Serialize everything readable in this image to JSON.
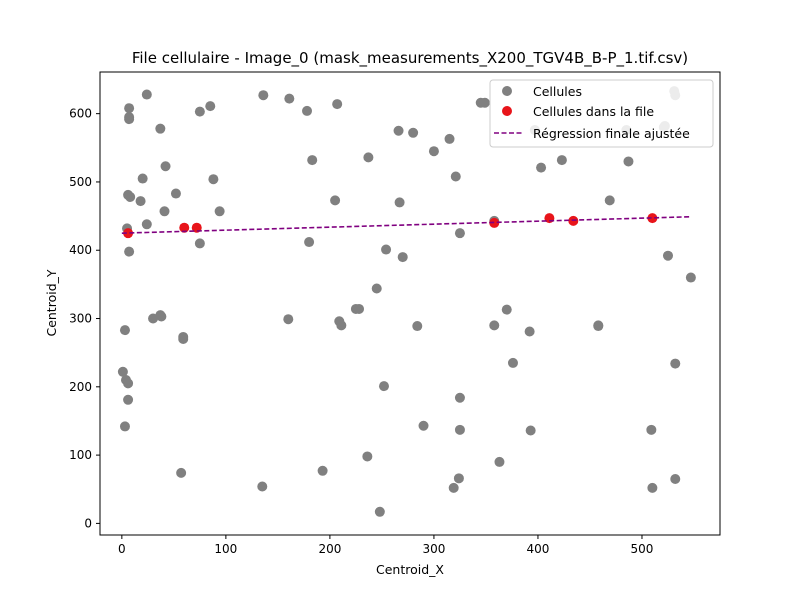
{
  "chart_data": {
    "type": "scatter",
    "title": "File cellulaire - Image_0 (mask_measurements_X200_TGV4B_B-P_1.tif.csv)",
    "xlabel": "Centroid_X",
    "ylabel": "Centroid_Y",
    "xlim": [
      -21,
      575
    ],
    "ylim": [
      661,
      -17
    ],
    "y_inverted": true,
    "x_ticks": [
      0,
      100,
      200,
      300,
      400,
      500
    ],
    "y_ticks": [
      0,
      100,
      200,
      300,
      400,
      500,
      600
    ],
    "grid": false,
    "legend_position": "top-right",
    "series": [
      {
        "name": "Cellules",
        "kind": "scatter",
        "color": "#808080",
        "points": [
          [
            248,
            17
          ],
          [
            319,
            52
          ],
          [
            324,
            66
          ],
          [
            510,
            52
          ],
          [
            532,
            65
          ],
          [
            57,
            74
          ],
          [
            135,
            54
          ],
          [
            193,
            77
          ],
          [
            236,
            98
          ],
          [
            363,
            90
          ],
          [
            3,
            142
          ],
          [
            290,
            143
          ],
          [
            325,
            137
          ],
          [
            393,
            136
          ],
          [
            509,
            137
          ],
          [
            6,
            181
          ],
          [
            325,
            184
          ],
          [
            6,
            205
          ],
          [
            4,
            210
          ],
          [
            252,
            201
          ],
          [
            1,
            222
          ],
          [
            376,
            235
          ],
          [
            532,
            234
          ],
          [
            59,
            270
          ],
          [
            59,
            273
          ],
          [
            3,
            283
          ],
          [
            30,
            300
          ],
          [
            37,
            305
          ],
          [
            38,
            303
          ],
          [
            160,
            299
          ],
          [
            209,
            296
          ],
          [
            211,
            290
          ],
          [
            225,
            314
          ],
          [
            228,
            314
          ],
          [
            284,
            289
          ],
          [
            358,
            290
          ],
          [
            370,
            313
          ],
          [
            392,
            281
          ],
          [
            458,
            289
          ],
          [
            458,
            290
          ],
          [
            245,
            344
          ],
          [
            547,
            360
          ],
          [
            7,
            398
          ],
          [
            75,
            410
          ],
          [
            180,
            412
          ],
          [
            254,
            401
          ],
          [
            270,
            390
          ],
          [
            525,
            392
          ],
          [
            5,
            432
          ],
          [
            358,
            443
          ],
          [
            24,
            438
          ],
          [
            41,
            457
          ],
          [
            94,
            457
          ],
          [
            325,
            425
          ],
          [
            6,
            481
          ],
          [
            8,
            478
          ],
          [
            18,
            472
          ],
          [
            52,
            483
          ],
          [
            205,
            473
          ],
          [
            267,
            470
          ],
          [
            469,
            473
          ],
          [
            20,
            505
          ],
          [
            42,
            523
          ],
          [
            88,
            504
          ],
          [
            183,
            532
          ],
          [
            237,
            536
          ],
          [
            321,
            508
          ],
          [
            403,
            521
          ],
          [
            423,
            532
          ],
          [
            487,
            530
          ],
          [
            300,
            545
          ],
          [
            315,
            563
          ],
          [
            266,
            575
          ],
          [
            280,
            572
          ],
          [
            37,
            578
          ],
          [
            397,
            576
          ],
          [
            485,
            576
          ],
          [
            521,
            580
          ],
          [
            522,
            582
          ],
          [
            7,
            592
          ],
          [
            7,
            595
          ],
          [
            7,
            608
          ],
          [
            75,
            603
          ],
          [
            85,
            611
          ],
          [
            178,
            604
          ],
          [
            207,
            614
          ],
          [
            24,
            628
          ],
          [
            136,
            627
          ],
          [
            161,
            622
          ],
          [
            345,
            616
          ],
          [
            349,
            616
          ],
          [
            532,
            627
          ],
          [
            531,
            633
          ]
        ]
      },
      {
        "name": "Cellules dans la file",
        "kind": "scatter",
        "color": "#e8141a",
        "points": [
          [
            6,
            425
          ],
          [
            60,
            433
          ],
          [
            72,
            433
          ],
          [
            358,
            440
          ],
          [
            411,
            447
          ],
          [
            434,
            443
          ],
          [
            510,
            447
          ]
        ]
      },
      {
        "name": "Régression finale ajustée",
        "kind": "line",
        "style": "dashed",
        "color": "#800080",
        "points": [
          [
            0,
            425
          ],
          [
            546,
            449
          ]
        ]
      }
    ]
  }
}
